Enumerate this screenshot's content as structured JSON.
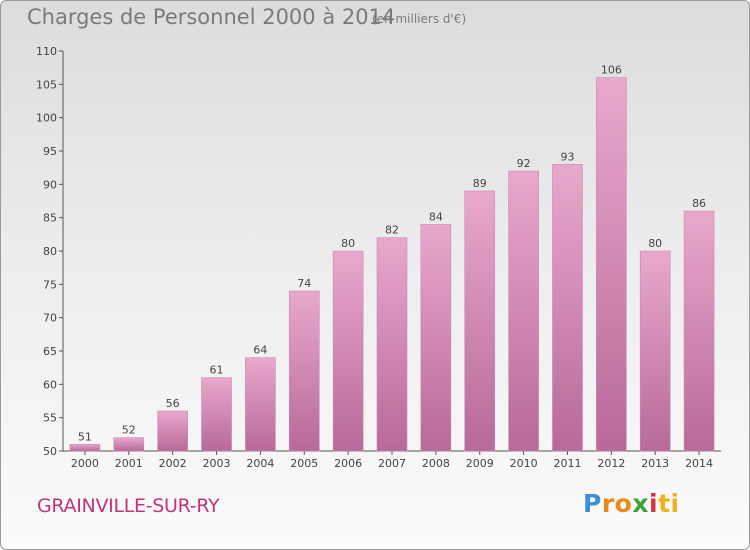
{
  "header": {
    "title": "Charges de Personnel 2000 à 2014",
    "subtitle": "(en milliers d'€)"
  },
  "footer": {
    "commune": "GRAINVILLE-SUR-RY",
    "logo_parts": [
      "P",
      "ro",
      "x",
      "i",
      "ti"
    ]
  },
  "colors": {
    "bar_top": "#e8a8cc",
    "bar_bottom": "#b8699a",
    "commune_text": "#c3347a"
  },
  "chart_data": {
    "type": "bar",
    "title": "Charges de Personnel 2000 à 2014",
    "subtitle": "(en milliers d'€)",
    "categories": [
      "2000",
      "2001",
      "2002",
      "2003",
      "2004",
      "2005",
      "2006",
      "2007",
      "2008",
      "2009",
      "2010",
      "2011",
      "2012",
      "2013",
      "2014"
    ],
    "values": [
      51,
      52,
      56,
      61,
      64,
      74,
      80,
      82,
      84,
      89,
      92,
      93,
      106,
      80,
      86
    ],
    "ylim": [
      50,
      110
    ],
    "yticks": [
      50,
      55,
      60,
      65,
      70,
      75,
      80,
      85,
      90,
      95,
      100,
      105,
      110
    ],
    "grid": false,
    "data_labels": true
  }
}
